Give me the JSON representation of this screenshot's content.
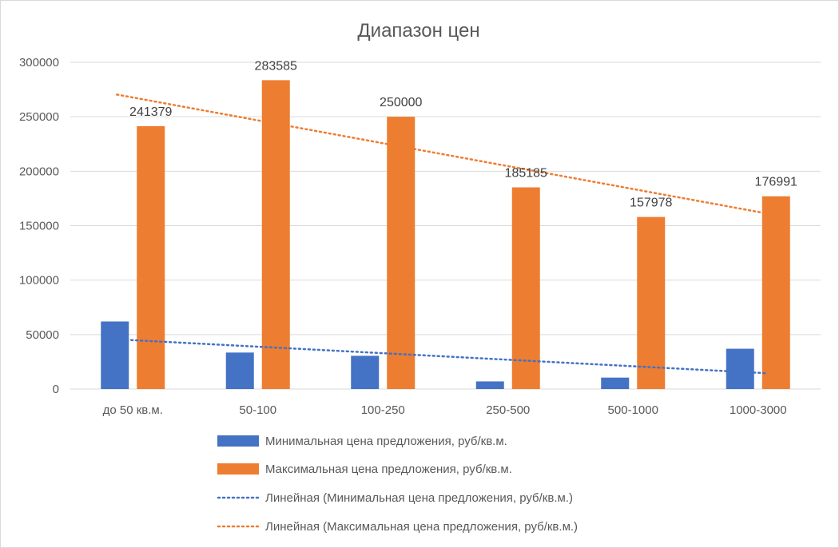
{
  "chart_data": {
    "type": "bar",
    "title": "Диапазон цен",
    "xlabel": "",
    "ylabel": "",
    "categories": [
      "до 50 кв.м.",
      "50-100",
      "100-250",
      "250-500",
      "500-1000",
      "1000-3000"
    ],
    "ylim": [
      0,
      300000
    ],
    "yticks": [
      "0",
      "50000",
      "100000",
      "150000",
      "200000",
      "250000",
      "300000"
    ],
    "grid": true,
    "legend_position": "bottom",
    "series": [
      {
        "name": "Минимальная цена предложения, руб/кв.м.",
        "values": [
          62000,
          33500,
          30500,
          7000,
          10500,
          37000
        ],
        "color": "#4472c4",
        "data_labels": false
      },
      {
        "name": "Максимальная цена предложения, руб/кв.м.",
        "values": [
          241379,
          283585,
          250000,
          185185,
          157978,
          176991
        ],
        "labels": [
          "241379",
          "283585",
          "250000",
          "185185",
          "157978",
          "176991"
        ],
        "color": "#ed7d31",
        "data_labels": true
      }
    ],
    "trendlines": [
      {
        "name": "Линейная (Минимальная цена предложения, руб/кв.м.)",
        "type": "linear",
        "series": 0,
        "color": "#4472c4",
        "style": "dotted"
      },
      {
        "name": "Линейная (Максимальная цена предложения, руб/кв.м.)",
        "type": "linear",
        "series": 1,
        "color": "#ed7d31",
        "style": "dotted"
      }
    ]
  }
}
